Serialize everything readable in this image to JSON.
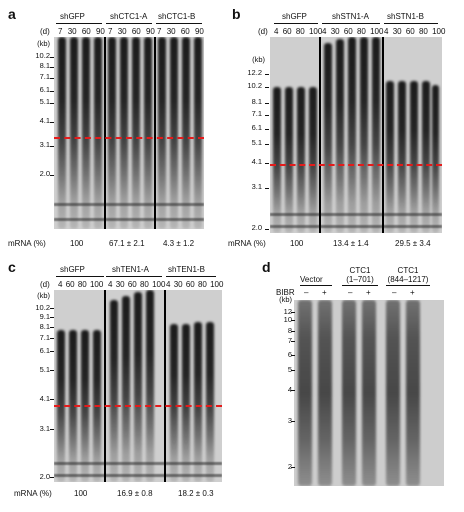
{
  "panels": {
    "a": {
      "letter": "a",
      "groups": [
        "shGFP",
        "shCTC1-A",
        "shCTC1-B"
      ],
      "days": [
        "7",
        "30",
        "60",
        "90"
      ],
      "day_label": "(d)",
      "kb_label": "(kb)",
      "kb": [
        "10.2",
        "8.1",
        "7.1",
        "6.1",
        "5.1",
        "4.1",
        "3.1",
        "2.0"
      ],
      "mrna_label": "mRNA (%)",
      "mrna": [
        "100",
        "67.1 ± 2.1",
        "4.3 ± 1.2"
      ]
    },
    "b": {
      "letter": "b",
      "groups": [
        "shGFP",
        "shSTN1-A",
        "shSTN1-B"
      ],
      "days": [
        "4",
        "60",
        "80",
        "100"
      ],
      "days_first": [
        "4",
        "30",
        "60",
        "80",
        "100"
      ],
      "day_label": "(d)",
      "kb_label": "(kb)",
      "kb": [
        "12.2",
        "10.2",
        "8.1",
        "7.1",
        "6.1",
        "5.1",
        "4.1",
        "3.1",
        "2.0"
      ],
      "mrna_label": "mRNA (%)",
      "mrna": [
        "100",
        "13.4 ± 1.4",
        "29.5 ± 3.4"
      ]
    },
    "c": {
      "letter": "c",
      "groups": [
        "shGFP",
        "shTEN1-A",
        "shTEN1-B"
      ],
      "days": [
        "4",
        "60",
        "80",
        "100"
      ],
      "day_label": "(d)",
      "kb_label": "(kb)",
      "kb": [
        "10.2",
        "9.1",
        "8.1",
        "7.1",
        "6.1",
        "5.1",
        "4.1",
        "3.1",
        "2.0"
      ],
      "mrna_label": "mRNA (%)",
      "mrna": [
        "100",
        "16.9 ± 0.8",
        "18.2 ± 0.3"
      ]
    },
    "d": {
      "letter": "d",
      "groups": [
        "Vector",
        "CTC1\n(1–701)",
        "CTC1\n(844–1217)"
      ],
      "bibr_label": "BIBR",
      "signs": [
        "–",
        "+",
        "–",
        "+",
        "–",
        "+"
      ],
      "kb_label": "(kb)",
      "kb": [
        "12",
        "10",
        "8",
        "7",
        "6",
        "5",
        "4",
        "3",
        "2"
      ]
    }
  }
}
